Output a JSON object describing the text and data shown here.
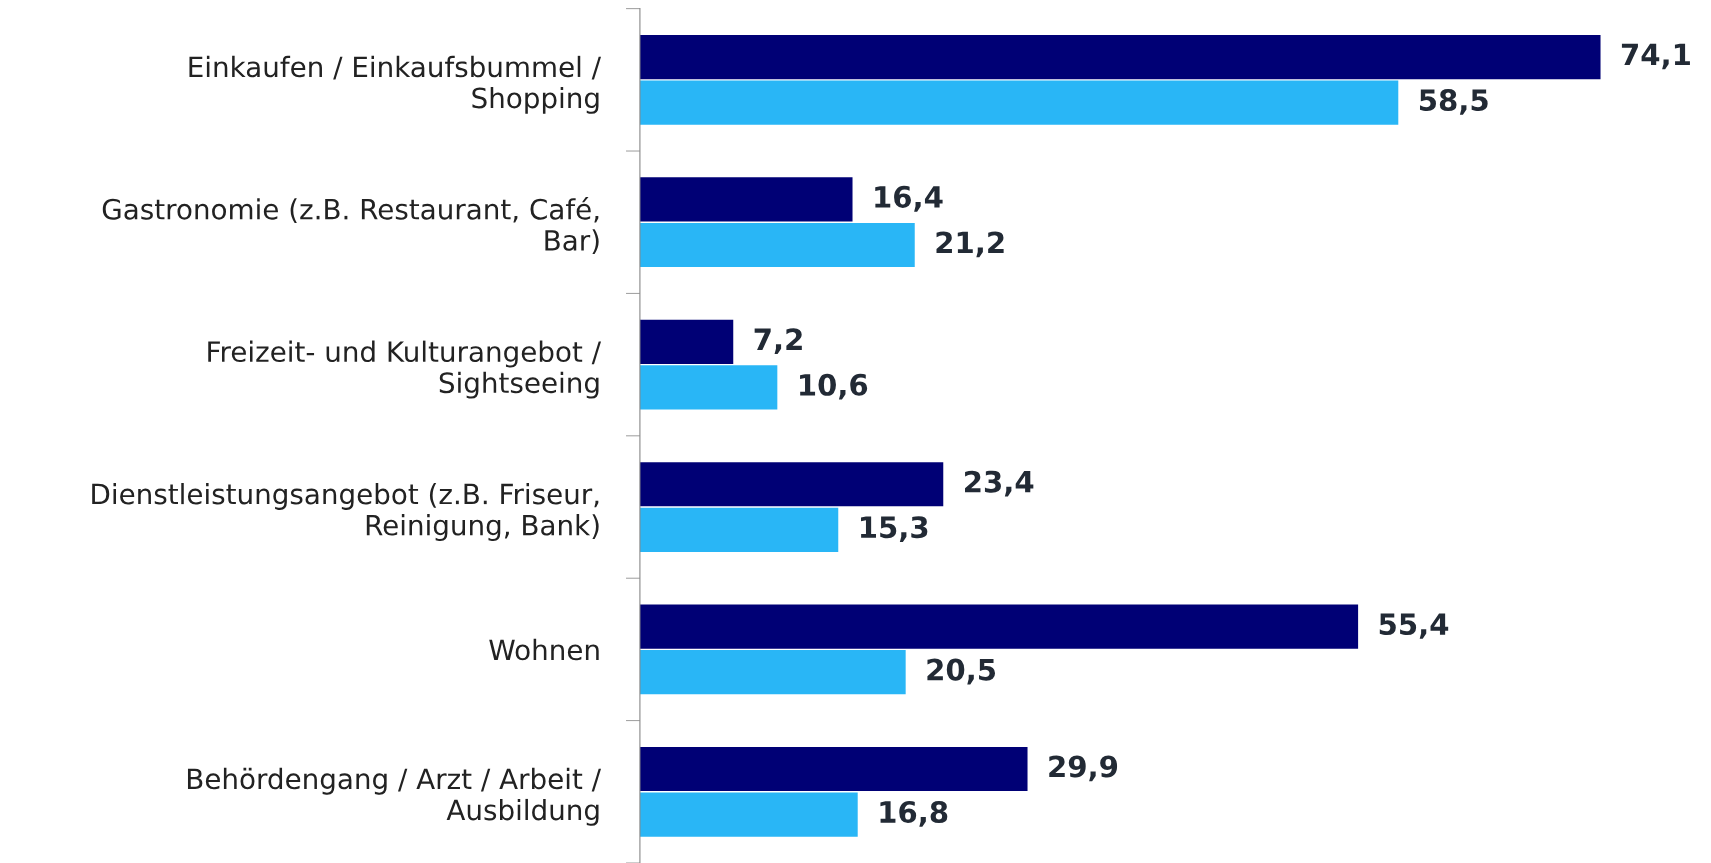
{
  "chart_data": {
    "type": "bar",
    "orientation": "horizontal",
    "categories": [
      "Einkaufen / Einkaufsbummel /\nShopping",
      "Gastronomie (z.B. Restaurant, Café,\nBar)",
      "Freizeit- und Kulturangebot /\nSightseeing",
      "Dienstleistungsangebot (z.B. Friseur,\nReinigung, Bank)",
      "Wohnen",
      "Behördengang / Arzt / Arbeit /\nAusbildung"
    ],
    "series": [
      {
        "color": "#000075",
        "values": [
          74.1,
          16.4,
          7.2,
          23.4,
          55.4,
          29.9
        ],
        "value_labels": [
          "74,1",
          "16,4",
          "7,2",
          "23,4",
          "55,4",
          "29,9"
        ]
      },
      {
        "color": "#29b6f6",
        "values": [
          58.5,
          21.2,
          10.6,
          15.3,
          20.5,
          16.8
        ],
        "value_labels": [
          "58,5",
          "21,2",
          "10,6",
          "15,3",
          "20,5",
          "16,8"
        ]
      }
    ],
    "grid": false
  }
}
